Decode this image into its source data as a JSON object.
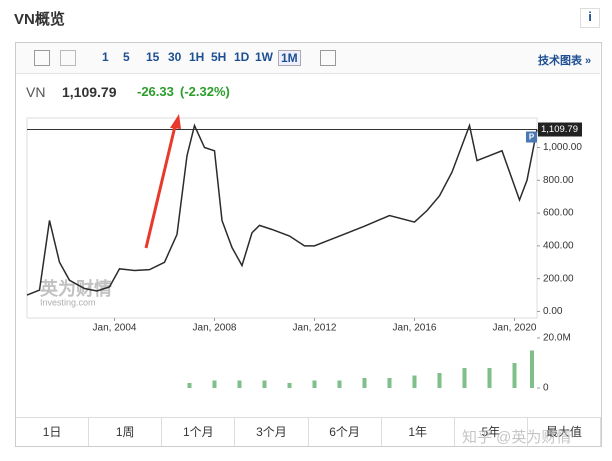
{
  "header": {
    "title": "VN概览",
    "info": "i"
  },
  "toolbar": {
    "periods": [
      "1",
      "5",
      "15",
      "30",
      "1H",
      "5H",
      "1D",
      "1W",
      "1M"
    ],
    "active": "1M",
    "link": "技术图表 »"
  },
  "quote": {
    "symbol": "VN",
    "price": "1,109.79",
    "change": "-26.33",
    "change_pct": "(-2.32%)"
  },
  "chart_data": [
    {
      "type": "line",
      "color": "#2b2b2b",
      "x": [
        2000.5,
        2001.0,
        2001.4,
        2001.8,
        2002.2,
        2002.8,
        2003.3,
        2003.8,
        2004.2,
        2004.8,
        2005.4,
        2006.0,
        2006.5,
        2006.9,
        2007.2,
        2007.6,
        2008.0,
        2008.3,
        2008.7,
        2009.1,
        2009.5,
        2009.8,
        2010.3,
        2011.0,
        2011.6,
        2012.0,
        2012.5,
        2013.0,
        2014.0,
        2015.0,
        2016.0,
        2016.5,
        2017.0,
        2017.5,
        2018.2,
        2018.5,
        2019.0,
        2019.5,
        2020.2,
        2020.5,
        2020.9
      ],
      "values": [
        100,
        130,
        555,
        300,
        190,
        140,
        125,
        150,
        260,
        250,
        255,
        300,
        470,
        950,
        1134,
        1000,
        980,
        555,
        390,
        280,
        480,
        525,
        500,
        460,
        400,
        400,
        430,
        460,
        520,
        585,
        545,
        615,
        705,
        850,
        1134,
        920,
        950,
        980,
        680,
        800,
        1109.79
      ],
      "xlim": [
        2000.5,
        2020.9
      ],
      "xticks": [
        {
          "value": 2004,
          "label": "Jan, 2004"
        },
        {
          "value": 2008,
          "label": "Jan, 2008"
        },
        {
          "value": 2012,
          "label": "Jan, 2012"
        },
        {
          "value": 2016,
          "label": "Jan, 2016"
        },
        {
          "value": 2020,
          "label": "Jan, 2020"
        }
      ],
      "ylim": [
        -40,
        1180
      ],
      "yticks": [
        {
          "value": 0,
          "label": "0.00"
        },
        {
          "value": 200,
          "label": "200.00"
        },
        {
          "value": 400,
          "label": "400.00"
        },
        {
          "value": 600,
          "label": "600.00"
        },
        {
          "value": 800,
          "label": "800.00"
        },
        {
          "value": 1000,
          "label": "1,000.00"
        }
      ],
      "price_line": {
        "value": 1109.79,
        "label": "1,109.79"
      },
      "price_marker": "P",
      "grid": false
    },
    {
      "type": "bar",
      "color": "#7fbf8a",
      "x": [
        2007,
        2008,
        2009,
        2010,
        2011,
        2012,
        2013,
        2014,
        2015,
        2016,
        2017,
        2018,
        2019,
        2020,
        2020.7
      ],
      "values": [
        2000000,
        3000000,
        3000000,
        3000000,
        2000000,
        3000000,
        3000000,
        4000000,
        4000000,
        5000000,
        6000000,
        8000000,
        8000000,
        10000000,
        15000000
      ],
      "xlim": [
        2000.5,
        2020.9
      ],
      "ylim": [
        0,
        21200000
      ],
      "yticks": [
        0,
        {
          "value": 20000000,
          "label": "20.0M"
        }
      ]
    }
  ],
  "ranges": [
    "1日",
    "1周",
    "1个月",
    "3个月",
    "6个月",
    "1年",
    "5年",
    "最大值"
  ],
  "watermarks": {
    "logo": "英为财情",
    "logo_sub": "Investing.com",
    "credit": "知乎 @英为财情"
  }
}
